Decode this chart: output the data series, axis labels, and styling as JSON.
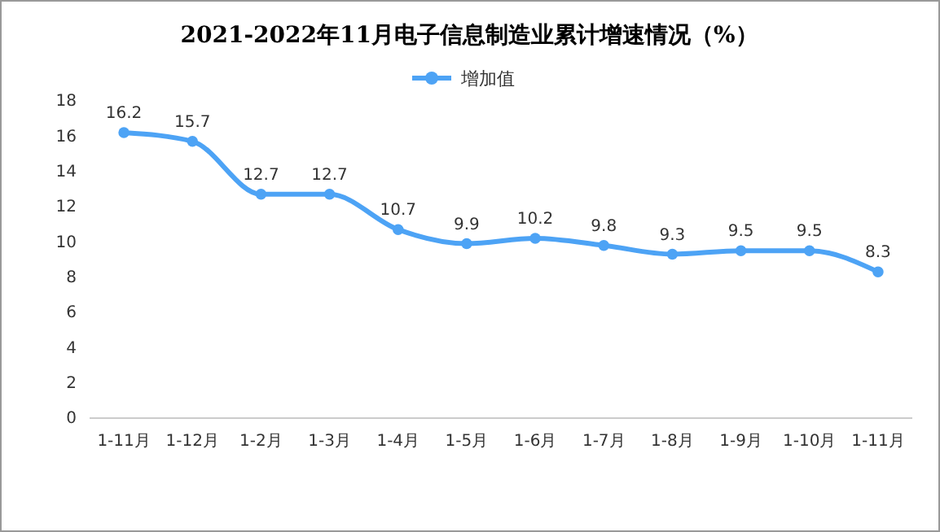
{
  "chart_data": {
    "type": "line",
    "title": "2021-2022年11月电子信息制造业累计增速情况（%）",
    "categories": [
      "1-11月",
      "1-12月",
      "1-2月",
      "1-3月",
      "1-4月",
      "1-5月",
      "1-6月",
      "1-7月",
      "1-8月",
      "1-9月",
      "1-10月",
      "1-11月"
    ],
    "series": [
      {
        "name": "增加值",
        "color": "#4da3f5",
        "values": [
          16.2,
          15.7,
          12.7,
          12.7,
          10.7,
          9.9,
          10.2,
          9.8,
          9.3,
          9.5,
          9.5,
          8.3
        ]
      }
    ],
    "ylim": [
      0,
      18
    ],
    "yticks": [
      0,
      2,
      4,
      6,
      8,
      10,
      12,
      14,
      16,
      18
    ],
    "data_labels": true,
    "legend": "top",
    "marker": "circle",
    "line_style": "solid",
    "grid": false
  }
}
